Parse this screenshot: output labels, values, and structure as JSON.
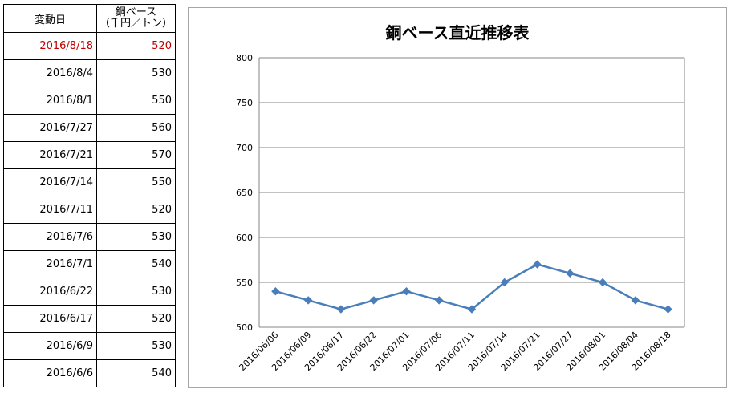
{
  "table": {
    "header_date": "変動日",
    "header_price_line1": "銅ベース",
    "header_price_line2": "（千円／トン）",
    "rows": [
      {
        "date": "2016/8/18",
        "price": "520"
      },
      {
        "date": "2016/8/4",
        "price": "530"
      },
      {
        "date": "2016/8/1",
        "price": "550"
      },
      {
        "date": "2016/7/27",
        "price": "560"
      },
      {
        "date": "2016/7/21",
        "price": "570"
      },
      {
        "date": "2016/7/14",
        "price": "550"
      },
      {
        "date": "2016/7/11",
        "price": "520"
      },
      {
        "date": "2016/7/6",
        "price": "530"
      },
      {
        "date": "2016/7/1",
        "price": "540"
      },
      {
        "date": "2016/6/22",
        "price": "530"
      },
      {
        "date": "2016/6/17",
        "price": "520"
      },
      {
        "date": "2016/6/9",
        "price": "530"
      },
      {
        "date": "2016/6/6",
        "price": "540"
      }
    ],
    "latest_color": "#c00000"
  },
  "chart_data": {
    "type": "line",
    "title": "銅ベース直近推移表",
    "xlabel": "",
    "ylabel": "",
    "categories": [
      "2016/06/06",
      "2016/06/09",
      "2016/06/17",
      "2016/06/22",
      "2016/07/01",
      "2016/07/06",
      "2016/07/11",
      "2016/07/14",
      "2016/07/21",
      "2016/07/27",
      "2016/08/01",
      "2016/08/04",
      "2016/08/18"
    ],
    "series": [
      {
        "values": [
          540,
          530,
          520,
          530,
          540,
          530,
          520,
          550,
          570,
          560,
          550,
          530,
          520
        ],
        "color": "#4a7ebb",
        "marker": "diamond"
      }
    ],
    "ylim": [
      500,
      800
    ],
    "yticks": [
      500,
      550,
      600,
      650,
      700,
      750,
      800
    ],
    "grid": true,
    "legend": "none"
  }
}
